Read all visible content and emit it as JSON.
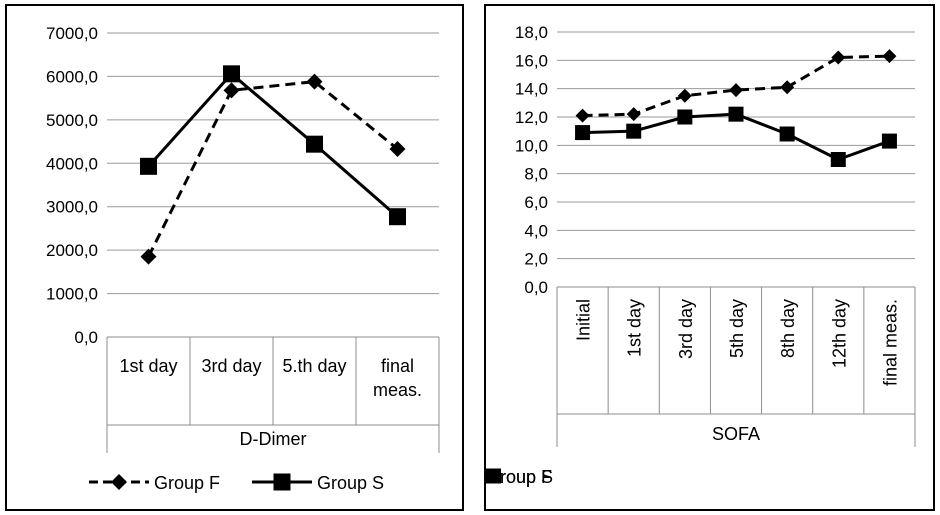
{
  "chart_data": [
    {
      "type": "line",
      "categories": [
        "1st day",
        "3rd day",
        "5.th day",
        "final meas."
      ],
      "category_lines": [
        [
          "1st day"
        ],
        [
          "3rd day"
        ],
        [
          "5.th day"
        ],
        [
          "final",
          "meas."
        ]
      ],
      "series": [
        {
          "name": "Group F",
          "values": [
            1850,
            5680,
            5880,
            4330
          ],
          "line_style": "dashed",
          "marker": "diamond"
        },
        {
          "name": "Group S",
          "values": [
            3930,
            6060,
            4440,
            2770
          ],
          "line_style": "solid",
          "marker": "square"
        }
      ],
      "xlabel": "D-Dimer",
      "ylabel": "",
      "ylim": [
        0,
        7000
      ],
      "y_ticks": [
        "0,0",
        "1000,0",
        "2000,0",
        "3000,0",
        "4000,0",
        "5000,0",
        "6000,0",
        "7000,0"
      ],
      "grid": true,
      "legend": "bottom",
      "colors": {
        "line": "#000000",
        "grid": "#9a9a9a",
        "axis": "#8c8c8c"
      }
    },
    {
      "type": "line",
      "categories": [
        "Initial",
        "1st day",
        "3rd day",
        "5th day",
        "8th day",
        "12th day",
        "final meas."
      ],
      "series": [
        {
          "name": "Group F",
          "values": [
            12.1,
            12.2,
            13.5,
            13.9,
            14.1,
            16.2,
            16.3
          ],
          "line_style": "dashed",
          "marker": "diamond"
        },
        {
          "name": "Group S",
          "values": [
            10.9,
            11.0,
            12.0,
            12.2,
            10.8,
            9.0,
            10.3
          ],
          "line_style": "solid",
          "marker": "square"
        }
      ],
      "xlabel": "SOFA",
      "ylabel": "",
      "ylim": [
        0,
        18
      ],
      "y_ticks": [
        "0,0",
        "2,0",
        "4,0",
        "6,0",
        "8,0",
        "10,0",
        "12,0",
        "14,0",
        "16,0",
        "18,0"
      ],
      "grid": true,
      "legend": "bottom",
      "colors": {
        "line": "#000000",
        "grid": "#9a9a9a",
        "axis": "#8c8c8c"
      }
    }
  ]
}
